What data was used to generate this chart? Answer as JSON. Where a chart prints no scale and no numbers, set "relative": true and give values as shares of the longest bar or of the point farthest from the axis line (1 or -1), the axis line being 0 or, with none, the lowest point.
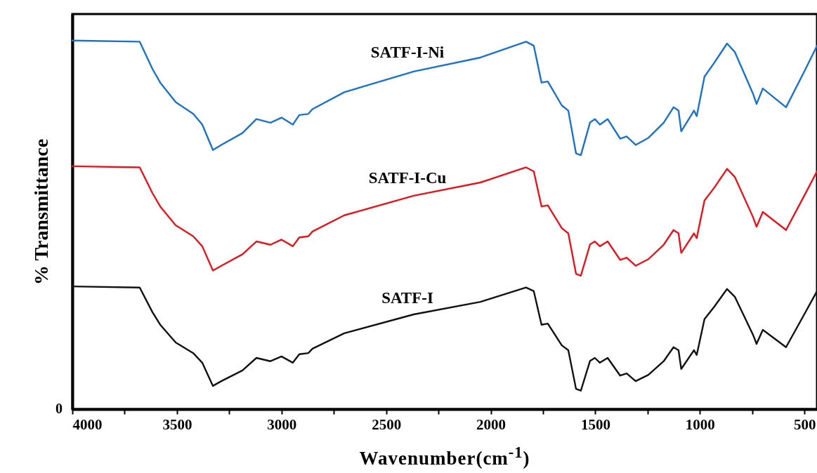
{
  "chart_data": {
    "type": "line",
    "relative": true,
    "xlabel": "Wavenumber(cm$^{-1}$)",
    "ylabel": "% Transmittance",
    "annotations": [
      "0"
    ],
    "xlim": [
      4000,
      440
    ],
    "xticks": [
      4000,
      {
        "value": 3750,
        "label": null
      },
      3500,
      {
        "value": 3250,
        "label": null
      },
      3000,
      {
        "value": 2750,
        "label": null
      },
      2500,
      {
        "value": 2250,
        "label": null
      },
      2000,
      {
        "value": 1750,
        "label": null
      },
      1500,
      {
        "value": 1250,
        "label": null
      },
      1000,
      {
        "value": 750,
        "label": null
      },
      500
    ],
    "line_style": "solid",
    "x": [
      4000,
      3678,
      3617,
      3580,
      3506,
      3422,
      3379,
      3328,
      3288,
      3187,
      3120,
      3053,
      3000,
      2946,
      2915,
      2872,
      2852,
      2700,
      2368,
      2049,
      1831,
      1794,
      1757,
      1727,
      1660,
      1629,
      1592,
      1569,
      1525,
      1502,
      1478,
      1441,
      1381,
      1350,
      1307,
      1246,
      1173,
      1126,
      1102,
      1089,
      1028,
      1015,
      978,
      931,
      870,
      833,
      746,
      729,
      699,
      588,
      501,
      440
    ],
    "series": [
      {
        "name": "SATF-I-Ni",
        "color": "#1a73c9",
        "values": [
          1.0,
          0.997,
          0.923,
          0.886,
          0.833,
          0.801,
          0.772,
          0.703,
          0.717,
          0.749,
          0.787,
          0.777,
          0.791,
          0.772,
          0.798,
          0.801,
          0.814,
          0.86,
          0.916,
          0.954,
          0.997,
          0.986,
          0.886,
          0.889,
          0.824,
          0.81,
          0.694,
          0.689,
          0.778,
          0.787,
          0.772,
          0.787,
          0.734,
          0.74,
          0.717,
          0.736,
          0.777,
          0.819,
          0.81,
          0.754,
          0.81,
          0.795,
          0.902,
          0.94,
          0.992,
          0.969,
          0.856,
          0.828,
          0.87,
          0.819,
          0.916,
          0.986
        ]
      },
      {
        "name": "SATF-I-Cu",
        "color": "#e8141c",
        "values": [
          0.659,
          0.656,
          0.586,
          0.55,
          0.499,
          0.469,
          0.442,
          0.376,
          0.389,
          0.42,
          0.455,
          0.446,
          0.46,
          0.442,
          0.466,
          0.469,
          0.482,
          0.526,
          0.579,
          0.615,
          0.656,
          0.645,
          0.55,
          0.553,
          0.491,
          0.477,
          0.367,
          0.362,
          0.447,
          0.455,
          0.442,
          0.455,
          0.405,
          0.411,
          0.389,
          0.407,
          0.446,
          0.486,
          0.477,
          0.424,
          0.477,
          0.464,
          0.566,
          0.601,
          0.652,
          0.63,
          0.521,
          0.495,
          0.535,
          0.486,
          0.579,
          0.645
        ]
      },
      {
        "name": "SATF-I",
        "color": "#111111",
        "values": [
          0.333,
          0.33,
          0.263,
          0.229,
          0.181,
          0.152,
          0.126,
          0.063,
          0.076,
          0.105,
          0.139,
          0.13,
          0.143,
          0.126,
          0.149,
          0.152,
          0.164,
          0.206,
          0.257,
          0.291,
          0.33,
          0.32,
          0.229,
          0.232,
          0.173,
          0.16,
          0.055,
          0.05,
          0.131,
          0.139,
          0.126,
          0.139,
          0.091,
          0.097,
          0.076,
          0.093,
          0.13,
          0.168,
          0.16,
          0.109,
          0.16,
          0.147,
          0.244,
          0.278,
          0.326,
          0.305,
          0.202,
          0.177,
          0.215,
          0.168,
          0.257,
          0.32
        ]
      }
    ]
  }
}
